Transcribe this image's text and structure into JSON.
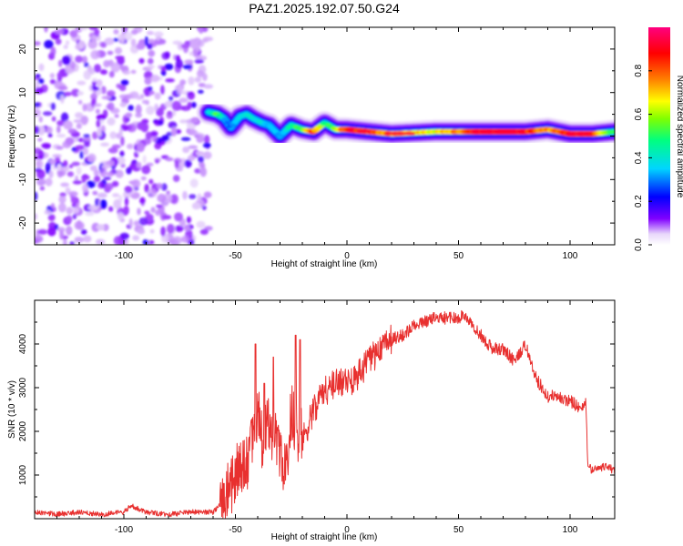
{
  "figure": {
    "title": "PAZ1.2025.192.07.50.G24"
  },
  "chart_data": [
    {
      "type": "heatmap",
      "title": "PAZ1.2025.192.07.50.G24",
      "xlabel": "Height of straight line (km)",
      "ylabel": "Frequency (Hz)",
      "xlim": [
        -140,
        120
      ],
      "ylim": [
        -25,
        25
      ],
      "xticks": [
        -100,
        -50,
        0,
        50,
        100
      ],
      "yticks": [
        -20,
        -10,
        0,
        10,
        20
      ],
      "colorbar": {
        "label": "Normalized spectral amplitude",
        "range": [
          0.0,
          1.0
        ],
        "ticks": [
          0.0,
          0.2,
          0.4,
          0.6,
          0.8
        ],
        "colors": [
          "#ffffff",
          "#e8d6fb",
          "#8000ff",
          "#0000ff",
          "#00d5ff",
          "#00ff80",
          "#80ff00",
          "#ffff00",
          "#ff8000",
          "#ff0000",
          "#ff0080"
        ]
      },
      "noise_region": {
        "x_range": [
          -140,
          -62
        ],
        "max_amplitude": 0.2
      },
      "ridge": {
        "x": [
          -62,
          -58,
          -55,
          -52,
          -48,
          -45,
          -42,
          -38,
          -35,
          -30,
          -25,
          -20,
          -15,
          -10,
          -5,
          0,
          10,
          20,
          40,
          60,
          80,
          90,
          100,
          110,
          120
        ],
        "freq": [
          5.5,
          5,
          4,
          2,
          4.5,
          5,
          4,
          3,
          2.5,
          0,
          2.5,
          1.5,
          1,
          3,
          1.5,
          1.5,
          1,
          0.5,
          1,
          1,
          1,
          1.5,
          0.5,
          0.5,
          1
        ],
        "amplitude": [
          0.4,
          0.6,
          0.35,
          0.3,
          0.4,
          0.45,
          0.4,
          0.4,
          0.35,
          0.35,
          0.5,
          0.6,
          0.9,
          0.5,
          0.6,
          0.95,
          0.9,
          0.8,
          0.7,
          0.95,
          0.95,
          0.8,
          0.95,
          0.9,
          0.5
        ]
      }
    },
    {
      "type": "line",
      "xlabel": "Height of straight line (km)",
      "ylabel": "SNR (10 * v/v)",
      "xlim": [
        -140,
        120
      ],
      "ylim": [
        0,
        5000
      ],
      "xticks": [
        -100,
        -50,
        0,
        50,
        100
      ],
      "yticks": [
        1000,
        2000,
        3000,
        4000
      ],
      "color": "#e8302f",
      "x": [
        -140,
        -130,
        -120,
        -110,
        -100,
        -97,
        -90,
        -80,
        -70,
        -60,
        -55,
        -50,
        -45,
        -42,
        -40,
        -38,
        -35,
        -30,
        -27,
        -25,
        -22,
        -20,
        -15,
        -10,
        -5,
        0,
        5,
        10,
        15,
        20,
        25,
        30,
        35,
        40,
        45,
        50,
        52,
        55,
        60,
        65,
        70,
        75,
        80,
        85,
        90,
        95,
        100,
        105,
        107,
        108,
        110,
        115,
        120
      ],
      "y": [
        150,
        100,
        150,
        100,
        150,
        300,
        150,
        100,
        150,
        150,
        400,
        1000,
        1200,
        2000,
        2500,
        1800,
        2200,
        1500,
        1200,
        2500,
        2000,
        1800,
        2500,
        2900,
        3100,
        3100,
        3300,
        3600,
        3900,
        4100,
        4200,
        4400,
        4500,
        4600,
        4600,
        4600,
        4700,
        4500,
        4200,
        3900,
        3900,
        3600,
        4000,
        3200,
        2800,
        2800,
        2700,
        2500,
        2700,
        1200,
        1100,
        1200,
        1100
      ],
      "spikes": [
        {
          "x": -41,
          "y": 4000
        },
        {
          "x": -37,
          "y": 3100
        },
        {
          "x": -33,
          "y": 3700
        },
        {
          "x": -23,
          "y": 4200
        },
        {
          "x": -21,
          "y": 4100
        }
      ]
    }
  ]
}
